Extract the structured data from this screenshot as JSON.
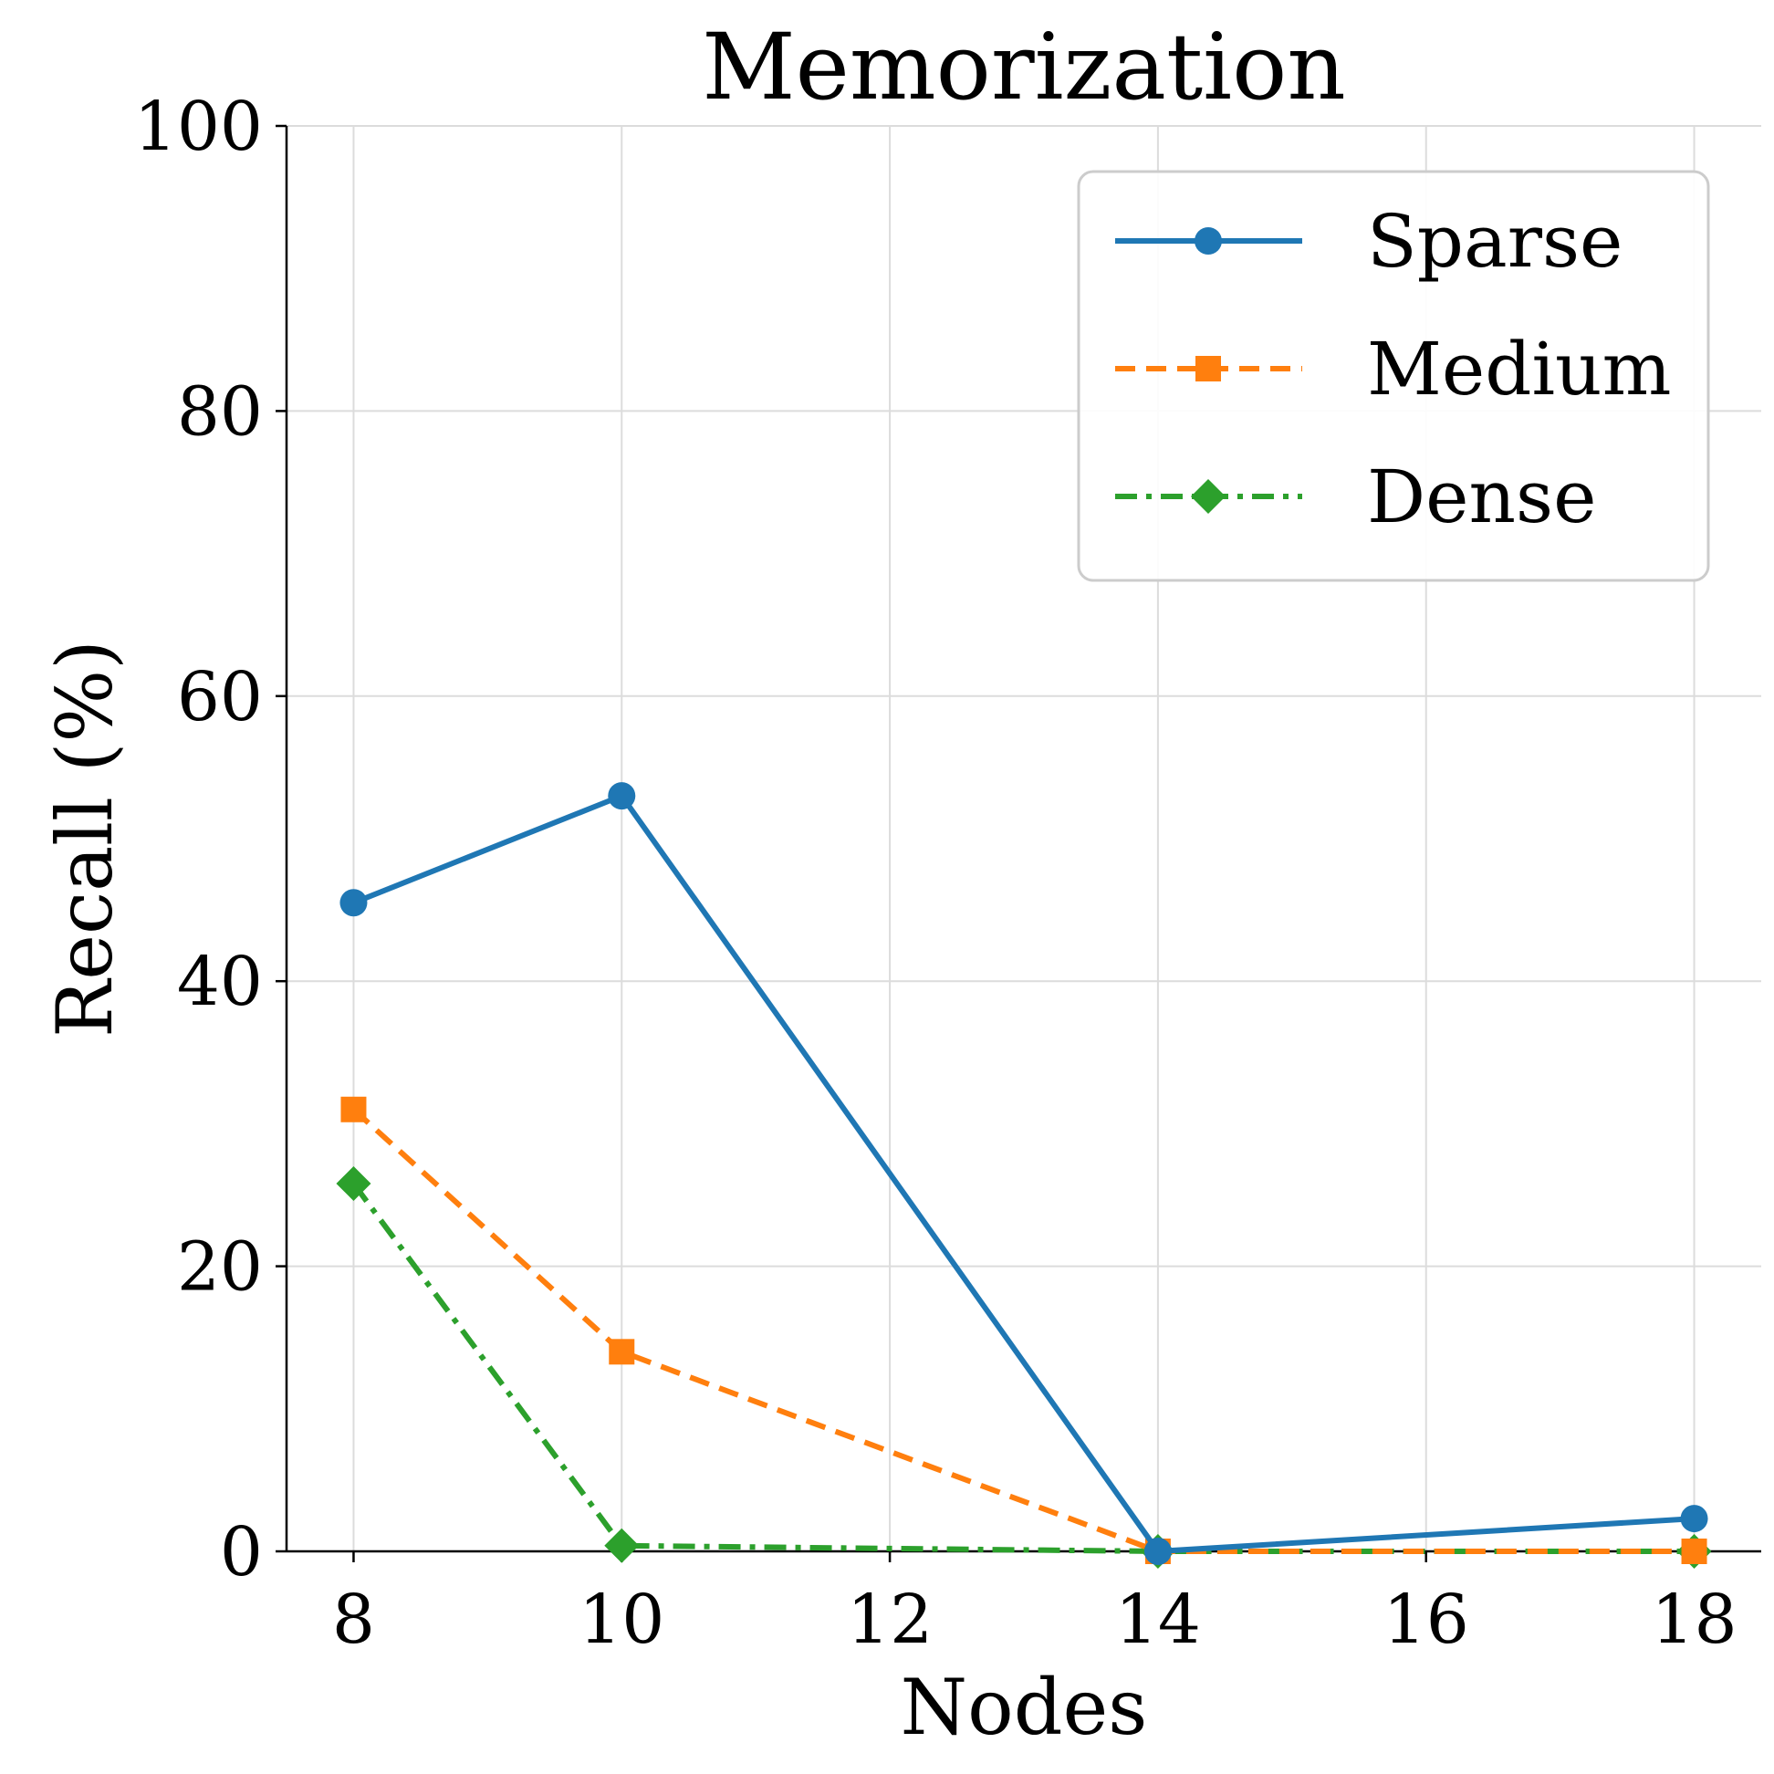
{
  "chart_data": {
    "type": "line",
    "title": "Memorization",
    "xlabel": "Nodes",
    "ylabel": "Recall (%)",
    "xlim": [
      7.5,
      18.5
    ],
    "ylim": [
      0,
      100
    ],
    "xticks": [
      8,
      10,
      12,
      14,
      16,
      18
    ],
    "yticks": [
      0,
      20,
      40,
      60,
      80,
      100
    ],
    "grid": true,
    "legend_position": "top-right",
    "series": [
      {
        "name": "Sparse",
        "x": [
          8,
          10,
          14,
          18
        ],
        "values": [
          45.5,
          53.0,
          0.0,
          2.3
        ],
        "color": "#1f77b4",
        "linestyle": "solid",
        "marker": "circle"
      },
      {
        "name": "Medium",
        "x": [
          8,
          10,
          14,
          18
        ],
        "values": [
          31.0,
          14.0,
          0.0,
          0.0
        ],
        "color": "#ff7f0e",
        "linestyle": "dashed",
        "marker": "square"
      },
      {
        "name": "Dense",
        "x": [
          8,
          10,
          14,
          18
        ],
        "values": [
          25.8,
          0.4,
          0.0,
          0.0
        ],
        "color": "#2ca02c",
        "linestyle": "dashdot",
        "marker": "diamond"
      }
    ]
  }
}
